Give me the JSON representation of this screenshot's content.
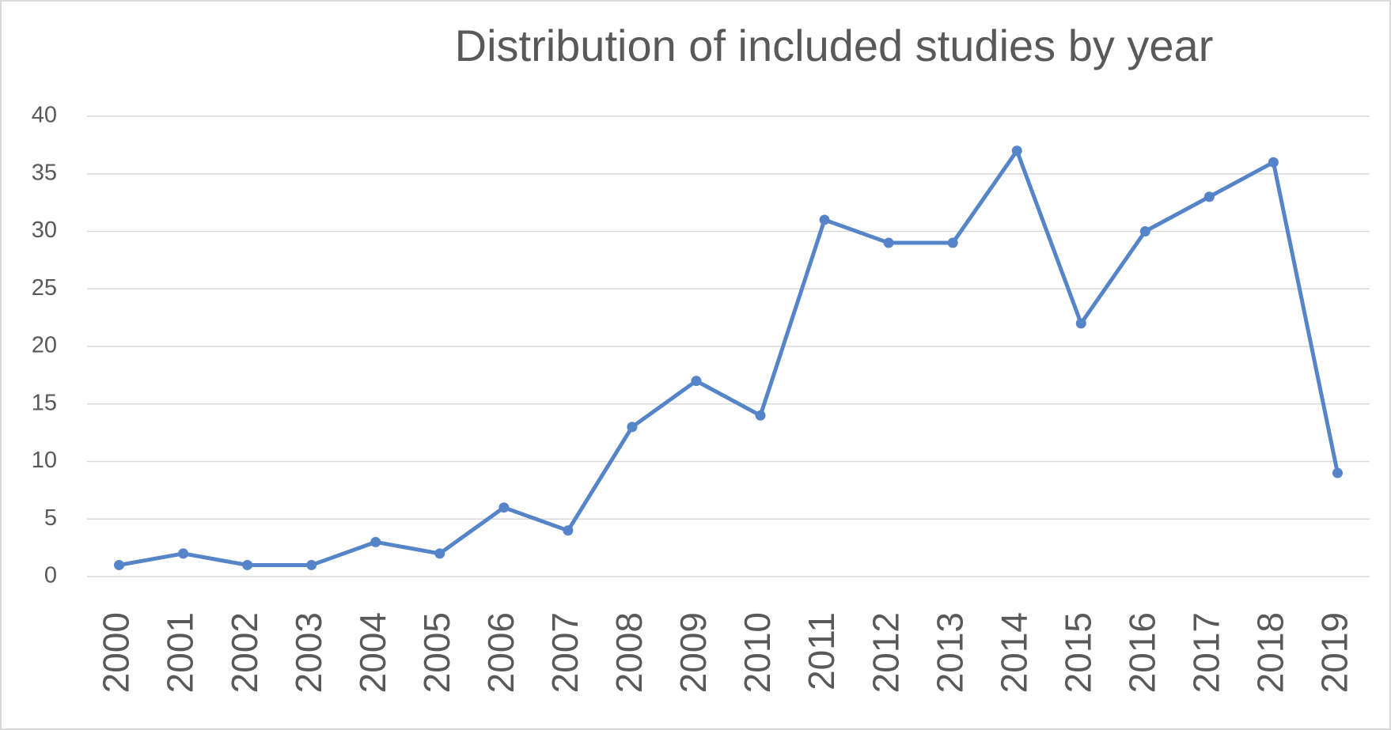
{
  "chart_data": {
    "type": "line",
    "title": "Distribution of included studies by year",
    "categories": [
      "2000",
      "2001",
      "2002",
      "2003",
      "2004",
      "2005",
      "2006",
      "2007",
      "2008",
      "2009",
      "2010",
      "2011",
      "2012",
      "2013",
      "2014",
      "2015",
      "2016",
      "2017",
      "2018",
      "2019"
    ],
    "values": [
      1,
      2,
      1,
      1,
      3,
      2,
      6,
      4,
      13,
      17,
      14,
      31,
      29,
      29,
      37,
      22,
      30,
      33,
      36,
      9
    ],
    "color": "#5584c9",
    "ylim": [
      0,
      40
    ],
    "yticks": [
      0,
      5,
      10,
      15,
      20,
      25,
      30,
      35,
      40
    ],
    "grid": true
  }
}
